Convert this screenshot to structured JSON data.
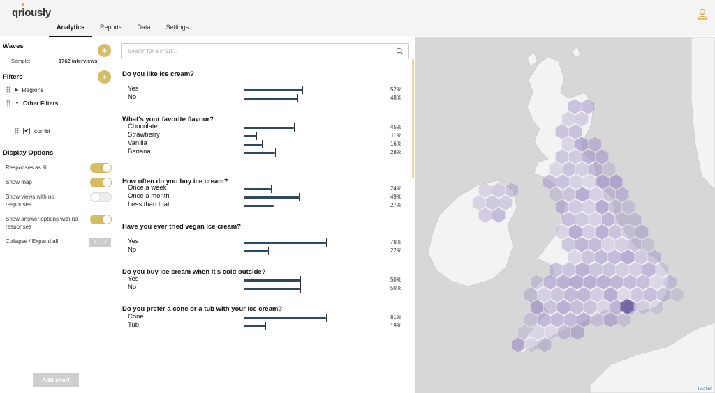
{
  "header": {
    "logo": "qriously",
    "tabs": [
      "Analytics",
      "Reports",
      "Data",
      "Settings"
    ],
    "active_tab": "Analytics"
  },
  "sidebar": {
    "waves_title": "Waves",
    "sample_label": "Sample:",
    "sample_value": "1762 interviews",
    "filters_title": "Filters",
    "filters": [
      "Regions",
      "Other Filters"
    ],
    "sub_filter": "combi",
    "display_title": "Display Options",
    "options": [
      {
        "label": "Responses as %",
        "on": true
      },
      {
        "label": "Show map",
        "on": true
      },
      {
        "label": "Show views with no responses",
        "on": false
      },
      {
        "label": "Show answer options with no responses",
        "on": true
      }
    ],
    "collapse_label": "Collapse / Expand all",
    "add_chart_label": "Add chart"
  },
  "search": {
    "placeholder": "Search for a chart..."
  },
  "questions": [
    {
      "title": "Do you like ice cream?",
      "answers": [
        {
          "label": "Yes",
          "pct": "52%",
          "value": 52
        },
        {
          "label": "No",
          "pct": "48%",
          "value": 48
        }
      ]
    },
    {
      "title": "What's your favorite flavour?",
      "answers": [
        {
          "label": "Chocolate",
          "pct": "45%",
          "value": 45
        },
        {
          "label": "Strawberry",
          "pct": "11%",
          "value": 11
        },
        {
          "label": "Vanilla",
          "pct": "16%",
          "value": 16
        },
        {
          "label": "Banana",
          "pct": "28%",
          "value": 28
        }
      ]
    },
    {
      "title": "How often do you buy ice cream?",
      "answers": [
        {
          "label": "Once a week",
          "pct": "24%",
          "value": 24
        },
        {
          "label": "Once a month",
          "pct": "49%",
          "value": 49
        },
        {
          "label": "Less than that",
          "pct": "27%",
          "value": 27
        }
      ]
    },
    {
      "title": "Have you ever tried vegan ice cream?",
      "answers": [
        {
          "label": "Yes",
          "pct": "78%",
          "value": 78
        },
        {
          "label": "No",
          "pct": "22%",
          "value": 22
        }
      ]
    },
    {
      "title": "Do you buy ice cream when it's cold outside?",
      "answers": [
        {
          "label": "Yes",
          "pct": "50%",
          "value": 50
        },
        {
          "label": "No",
          "pct": "50%",
          "value": 50
        }
      ]
    },
    {
      "title": "Do you prefer a cone or a tub with your ice cream?",
      "answers": [
        {
          "label": "Cone",
          "pct": "81%",
          "value": 81
        },
        {
          "label": "Tub",
          "pct": "19%",
          "value": 19
        }
      ]
    }
  ],
  "map": {
    "attribution": "Leaflet"
  },
  "colors": {
    "accent": "#d8bc60",
    "bar": "#2e4a5e",
    "hex_fill": "#9c8cc4"
  }
}
